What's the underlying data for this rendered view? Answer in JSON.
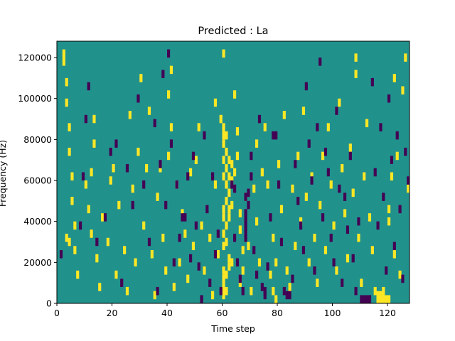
{
  "chart_data": {
    "type": "heatmap",
    "title": "Predicted : La",
    "xlabel": "Time step",
    "ylabel": "Frequency (Hz)",
    "xlim": [
      0,
      128
    ],
    "ylim": [
      0,
      128000
    ],
    "xticks": [
      0,
      20,
      40,
      60,
      80,
      100,
      120
    ],
    "yticks": [
      0,
      20000,
      40000,
      60000,
      80000,
      100000,
      120000
    ],
    "xtick_labels": [
      "0",
      "20",
      "40",
      "60",
      "80",
      "100",
      "120"
    ],
    "ytick_labels": [
      "0",
      "20000",
      "40000",
      "60000",
      "80000",
      "100000",
      "120000"
    ],
    "grid": false,
    "colors": {
      "background_value": "#21918c",
      "high_value": "#fde725",
      "low_value": "#440154"
    },
    "value_levels": {
      "low": -1,
      "background": 0,
      "high": 1
    },
    "n_time_steps": 128,
    "n_freq_bins": 128,
    "cells_high": [
      [
        2,
        120000
      ],
      [
        2,
        116000
      ],
      [
        3,
        106000
      ],
      [
        3,
        96000
      ],
      [
        4,
        84000
      ],
      [
        4,
        72000
      ],
      [
        5,
        60000
      ],
      [
        5,
        48000
      ],
      [
        6,
        36000
      ],
      [
        6,
        24000
      ],
      [
        3,
        30000
      ],
      [
        4,
        28000
      ],
      [
        7,
        12000
      ],
      [
        10,
        56000
      ],
      [
        11,
        44000
      ],
      [
        12,
        32000
      ],
      [
        12,
        62000
      ],
      [
        13,
        88000
      ],
      [
        13,
        76000
      ],
      [
        14,
        20000
      ],
      [
        15,
        6000
      ],
      [
        16,
        40000
      ],
      [
        18,
        28000
      ],
      [
        19,
        58000
      ],
      [
        20,
        64000
      ],
      [
        21,
        12000
      ],
      [
        22,
        46000
      ],
      [
        24,
        24000
      ],
      [
        25,
        4000
      ],
      [
        26,
        90000
      ],
      [
        27,
        54000
      ],
      [
        28,
        18000
      ],
      [
        29,
        72000
      ],
      [
        30,
        108000
      ],
      [
        31,
        36000
      ],
      [
        32,
        64000
      ],
      [
        33,
        92000
      ],
      [
        34,
        22000
      ],
      [
        35,
        2000
      ],
      [
        36,
        50000
      ],
      [
        37,
        64000
      ],
      [
        38,
        30000
      ],
      [
        39,
        14000
      ],
      [
        40,
        70000
      ],
      [
        40,
        100000
      ],
      [
        41,
        112000
      ],
      [
        41,
        84000
      ],
      [
        42,
        6000
      ],
      [
        43,
        56000
      ],
      [
        44,
        18000
      ],
      [
        45,
        42000
      ],
      [
        46,
        32000
      ],
      [
        47,
        10000
      ],
      [
        48,
        62000
      ],
      [
        49,
        26000
      ],
      [
        50,
        68000
      ],
      [
        51,
        84000
      ],
      [
        52,
        36000
      ],
      [
        53,
        14000
      ],
      [
        55,
        30000
      ],
      [
        56,
        2000
      ],
      [
        57,
        56000
      ],
      [
        57,
        96000
      ],
      [
        58,
        22000
      ],
      [
        59,
        88000
      ],
      [
        60,
        120000
      ],
      [
        60,
        84000
      ],
      [
        60,
        80000
      ],
      [
        60,
        76000
      ],
      [
        60,
        68000
      ],
      [
        60,
        60000
      ],
      [
        60,
        44000
      ],
      [
        60,
        40000
      ],
      [
        60,
        32000
      ],
      [
        60,
        26000
      ],
      [
        60,
        14000
      ],
      [
        60,
        10000
      ],
      [
        60,
        6000
      ],
      [
        60,
        2000
      ],
      [
        61,
        80000
      ],
      [
        61,
        72000
      ],
      [
        61,
        64000
      ],
      [
        61,
        56000
      ],
      [
        61,
        48000
      ],
      [
        61,
        36000
      ],
      [
        61,
        28000
      ],
      [
        61,
        12000
      ],
      [
        61,
        4000
      ],
      [
        62,
        68000
      ],
      [
        62,
        60000
      ],
      [
        62,
        52000
      ],
      [
        62,
        44000
      ],
      [
        62,
        40000
      ],
      [
        62,
        20000
      ],
      [
        62,
        16000
      ],
      [
        63,
        66000
      ],
      [
        63,
        58000
      ],
      [
        63,
        46000
      ],
      [
        63,
        18000
      ],
      [
        64,
        62000
      ],
      [
        64,
        100000
      ],
      [
        65,
        70000
      ],
      [
        65,
        82000
      ],
      [
        66,
        42000
      ],
      [
        66,
        34000
      ],
      [
        66,
        8000
      ],
      [
        67,
        24000
      ],
      [
        67,
        14000
      ],
      [
        68,
        50000
      ],
      [
        69,
        26000
      ],
      [
        70,
        4000
      ],
      [
        71,
        54000
      ],
      [
        72,
        76000
      ],
      [
        72,
        38000
      ],
      [
        73,
        18000
      ],
      [
        74,
        62000
      ],
      [
        75,
        84000
      ],
      [
        76,
        56000
      ],
      [
        77,
        12000
      ],
      [
        78,
        30000
      ],
      [
        78,
        4000
      ],
      [
        79,
        18000
      ],
      [
        79,
        0
      ],
      [
        80,
        66000
      ],
      [
        81,
        44000
      ],
      [
        82,
        90000
      ],
      [
        83,
        14000
      ],
      [
        84,
        6000
      ],
      [
        85,
        54000
      ],
      [
        86,
        26000
      ],
      [
        87,
        70000
      ],
      [
        88,
        38000
      ],
      [
        89,
        92000
      ],
      [
        90,
        50000
      ],
      [
        91,
        18000
      ],
      [
        92,
        60000
      ],
      [
        93,
        30000
      ],
      [
        94,
        8000
      ],
      [
        95,
        46000
      ],
      [
        96,
        70000
      ],
      [
        97,
        24000
      ],
      [
        98,
        84000
      ],
      [
        99,
        56000
      ],
      [
        100,
        36000
      ],
      [
        101,
        14000
      ],
      [
        102,
        96000
      ],
      [
        103,
        64000
      ],
      [
        104,
        42000
      ],
      [
        105,
        20000
      ],
      [
        106,
        74000
      ],
      [
        107,
        52000
      ],
      [
        108,
        110000
      ],
      [
        108,
        118000
      ],
      [
        109,
        30000
      ],
      [
        110,
        8000
      ],
      [
        111,
        60000
      ],
      [
        112,
        86000
      ],
      [
        113,
        40000
      ],
      [
        114,
        24000
      ],
      [
        115,
        4000
      ],
      [
        116,
        0
      ],
      [
        116,
        2000
      ],
      [
        117,
        0
      ],
      [
        117,
        2000
      ],
      [
        118,
        0
      ],
      [
        118,
        4000
      ],
      [
        119,
        0
      ],
      [
        120,
        0
      ],
      [
        120,
        38000
      ],
      [
        120,
        44000
      ],
      [
        121,
        60000
      ],
      [
        122,
        108000
      ],
      [
        122,
        22000
      ],
      [
        123,
        70000
      ],
      [
        124,
        12000
      ],
      [
        125,
        102000
      ],
      [
        126,
        118000
      ],
      [
        127,
        54000
      ]
    ],
    "cells_low": [
      [
        1,
        22000
      ],
      [
        8,
        36000
      ],
      [
        9,
        60000
      ],
      [
        10,
        88000
      ],
      [
        11,
        104000
      ],
      [
        14,
        28000
      ],
      [
        17,
        40000
      ],
      [
        19,
        72000
      ],
      [
        21,
        76000
      ],
      [
        23,
        8000
      ],
      [
        25,
        64000
      ],
      [
        27,
        46000
      ],
      [
        29,
        98000
      ],
      [
        31,
        56000
      ],
      [
        33,
        28000
      ],
      [
        35,
        86000
      ],
      [
        36,
        4000
      ],
      [
        37,
        66000
      ],
      [
        38,
        110000
      ],
      [
        39,
        46000
      ],
      [
        40,
        120000
      ],
      [
        41,
        76000
      ],
      [
        42,
        18000
      ],
      [
        43,
        56000
      ],
      [
        44,
        30000
      ],
      [
        45,
        40000
      ],
      [
        46,
        40000
      ],
      [
        47,
        60000
      ],
      [
        48,
        20000
      ],
      [
        49,
        70000
      ],
      [
        50,
        36000
      ],
      [
        51,
        16000
      ],
      [
        52,
        0
      ],
      [
        53,
        80000
      ],
      [
        54,
        44000
      ],
      [
        55,
        8000
      ],
      [
        56,
        60000
      ],
      [
        57,
        22000
      ],
      [
        58,
        32000
      ],
      [
        59,
        4000
      ],
      [
        63,
        56000
      ],
      [
        64,
        54000
      ],
      [
        64,
        30000
      ],
      [
        65,
        18000
      ],
      [
        66,
        10000
      ],
      [
        67,
        4000
      ],
      [
        68,
        50000
      ],
      [
        68,
        42000
      ],
      [
        68,
        38000
      ],
      [
        68,
        34000
      ],
      [
        68,
        30000
      ],
      [
        69,
        52000
      ],
      [
        69,
        46000
      ],
      [
        70,
        70000
      ],
      [
        70,
        60000
      ],
      [
        71,
        24000
      ],
      [
        72,
        12000
      ],
      [
        73,
        88000
      ],
      [
        74,
        6000
      ],
      [
        75,
        4000
      ],
      [
        75,
        2000
      ],
      [
        76,
        16000
      ],
      [
        77,
        40000
      ],
      [
        78,
        80000
      ],
      [
        79,
        80000
      ],
      [
        80,
        56000
      ],
      [
        81,
        28000
      ],
      [
        82,
        4000
      ],
      [
        83,
        2000
      ],
      [
        84,
        2000
      ],
      [
        85,
        10000
      ],
      [
        86,
        66000
      ],
      [
        87,
        48000
      ],
      [
        88,
        36000
      ],
      [
        89,
        24000
      ],
      [
        90,
        104000
      ],
      [
        91,
        76000
      ],
      [
        92,
        58000
      ],
      [
        93,
        14000
      ],
      [
        94,
        84000
      ],
      [
        95,
        116000
      ],
      [
        96,
        40000
      ],
      [
        97,
        72000
      ],
      [
        98,
        62000
      ],
      [
        99,
        30000
      ],
      [
        100,
        18000
      ],
      [
        101,
        92000
      ],
      [
        102,
        54000
      ],
      [
        103,
        8000
      ],
      [
        104,
        50000
      ],
      [
        105,
        34000
      ],
      [
        106,
        70000
      ],
      [
        107,
        20000
      ],
      [
        108,
        4000
      ],
      [
        109,
        38000
      ],
      [
        110,
        0
      ],
      [
        111,
        0
      ],
      [
        112,
        0
      ],
      [
        113,
        0
      ],
      [
        113,
        0
      ],
      [
        114,
        106000
      ],
      [
        115,
        62000
      ],
      [
        116,
        36000
      ],
      [
        117,
        84000
      ],
      [
        118,
        50000
      ],
      [
        119,
        14000
      ],
      [
        120,
        98000
      ],
      [
        121,
        68000
      ],
      [
        122,
        26000
      ],
      [
        123,
        80000
      ],
      [
        124,
        44000
      ],
      [
        125,
        10000
      ],
      [
        126,
        72000
      ],
      [
        127,
        58000
      ]
    ]
  }
}
